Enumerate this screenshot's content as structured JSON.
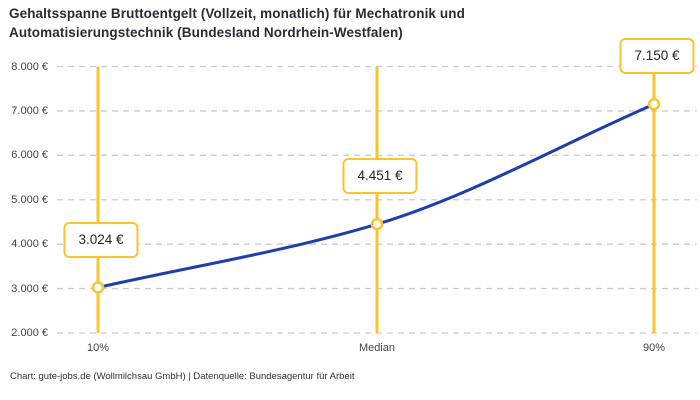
{
  "title_lines": [
    "Gehaltsspanne Bruttoentgelt (Vollzeit, monatlich) für Mechatronik und",
    "Automatisierungstechnik (Bundesland Nordrhein-Westfalen)"
  ],
  "footer": "Chart: gute-jobs.de (Wollmilchsau GmbH) | Datenquelle: Bundesagentur für Arbeit",
  "chart_data": {
    "type": "line",
    "title": "Gehaltsspanne Bruttoentgelt (Vollzeit, monatlich) für Mechatronik und Automatisierungstechnik (Bundesland Nordrhein-Westfalen)",
    "categories": [
      "10%",
      "Median",
      "90%"
    ],
    "values": [
      3024,
      4451,
      7150
    ],
    "value_labels": [
      "3.024 €",
      "4.451 €",
      "7.150 €"
    ],
    "ylim": [
      2000,
      8000
    ],
    "ytick_step": 1000,
    "ytick_labels": [
      "2.000 €",
      "3.000 €",
      "4.000 €",
      "5.000 €",
      "6.000 €",
      "7.000 €",
      "8.000 €"
    ],
    "xlabel": "",
    "ylabel": "",
    "grid": "horizontal-dashed",
    "legend": "none",
    "colors": {
      "accent_yellow": "#fbc42d",
      "line_blue": "#1f3ead",
      "grid_gray": "#cccccc",
      "text_dark": "#2b2b33",
      "axis_text": "#40454f"
    }
  }
}
